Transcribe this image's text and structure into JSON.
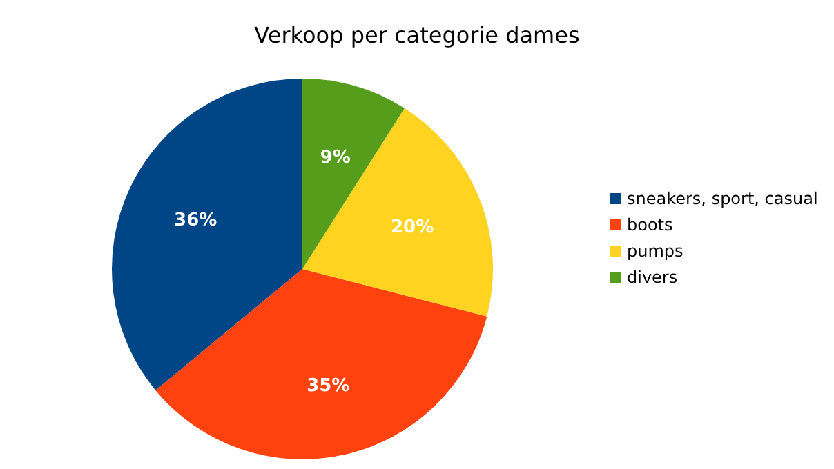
{
  "chart_data": {
    "type": "pie",
    "title": "Verkoop per categorie dames",
    "categories": [
      "sneakers, sport, casual",
      "boots",
      "pumps",
      "divers"
    ],
    "values": [
      36,
      35,
      20,
      9
    ],
    "value_labels": [
      "36%",
      "35%",
      "20%",
      "9%"
    ],
    "colors": [
      "#004586",
      "#ff420e",
      "#ffd320",
      "#579d1c"
    ],
    "legend": "right"
  }
}
